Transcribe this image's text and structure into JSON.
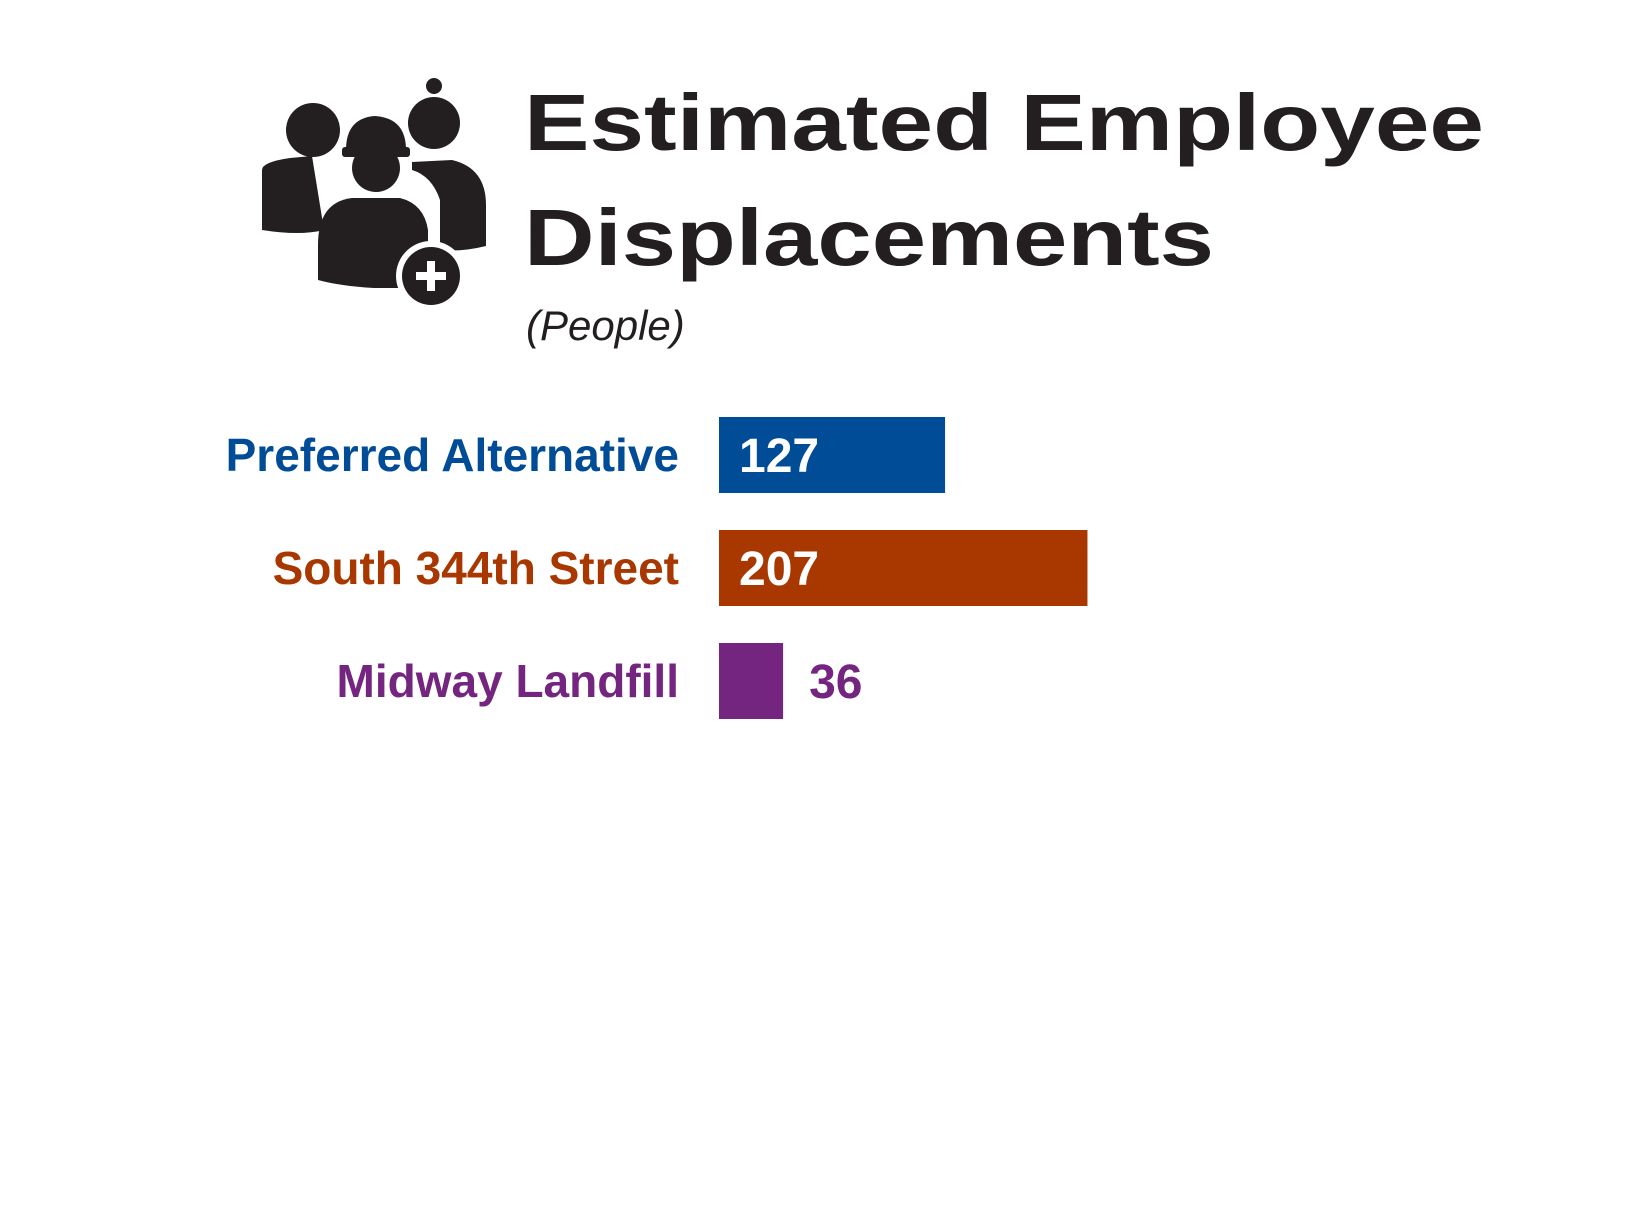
{
  "chart_data": {
    "type": "bar",
    "orientation": "horizontal",
    "title_line1": "Estimated Employee",
    "title_line2": "Displacements",
    "subtitle": "(People)",
    "icon": "group-of-people-with-plus-icon",
    "categories": [
      "Preferred Alternative",
      "South 344th Street",
      "Midway Landfill"
    ],
    "values": [
      127,
      207,
      36
    ],
    "value_labels": [
      "127",
      "207",
      "36"
    ],
    "colors": [
      "#004C97",
      "#A83800",
      "#74257F"
    ],
    "title_color": "#231F20",
    "grid": false,
    "legend": "none"
  }
}
